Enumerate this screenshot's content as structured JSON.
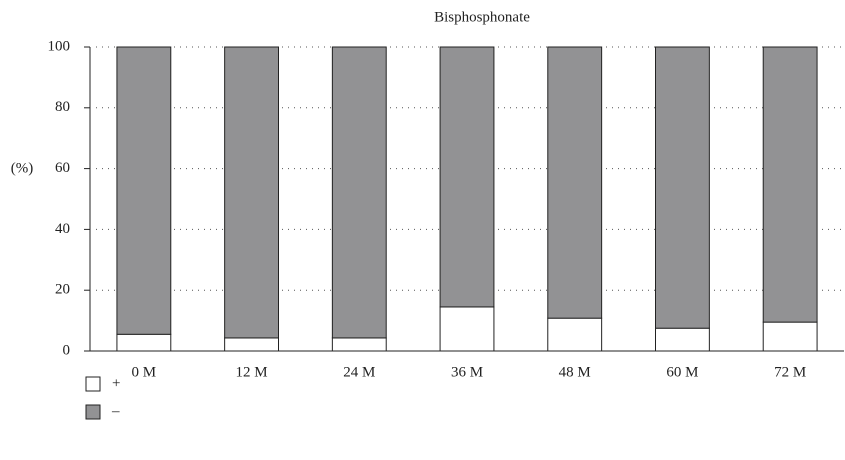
{
  "chart_data": {
    "type": "bar",
    "stacked": true,
    "title": "Bisphosphonate",
    "y_label": "(%)",
    "categories": [
      "0 M",
      "12 M",
      "24 M",
      "36 M",
      "48 M",
      "60 M",
      "72 M"
    ],
    "series": [
      {
        "name": "+",
        "color": "#ffffff",
        "values": [
          5.5,
          4.3,
          4.3,
          14.5,
          10.8,
          7.5,
          9.5
        ]
      },
      {
        "name": "–",
        "color": "#929294",
        "values": [
          94.5,
          95.7,
          95.7,
          85.5,
          89.2,
          92.5,
          90.5
        ]
      }
    ],
    "ylim": [
      0,
      100
    ],
    "yticks": [
      0,
      20,
      40,
      60,
      80,
      100
    ],
    "grid": true,
    "legend": "bottom-left"
  }
}
